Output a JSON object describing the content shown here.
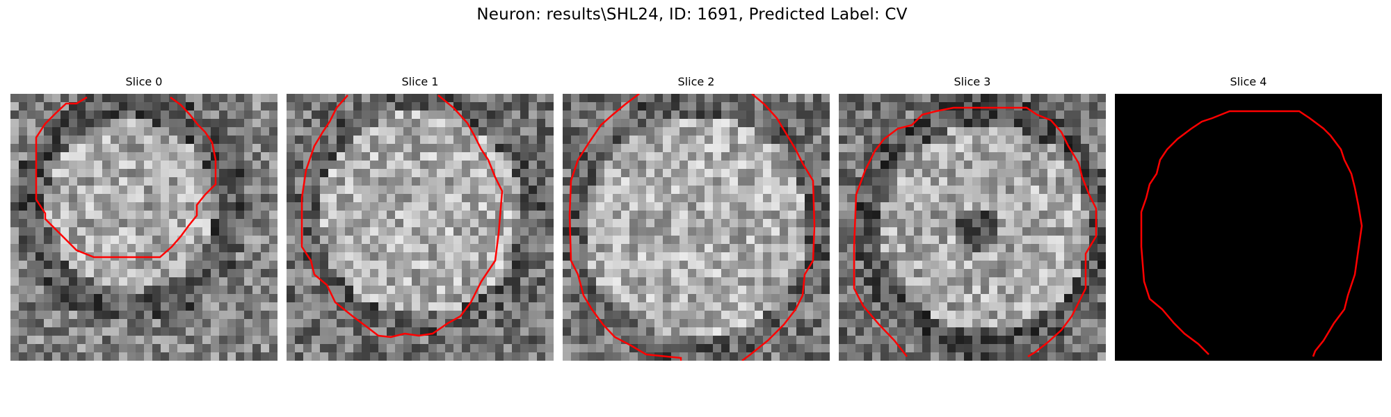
{
  "figure": {
    "title": "Neuron: results\\SHL24, ID: 1691, Predicted Label: CV"
  },
  "panels": [
    {
      "title": "Slice 0",
      "image": "grayscale-microscopy-slice",
      "contour_color": "#ff0000"
    },
    {
      "title": "Slice 1",
      "image": "grayscale-microscopy-slice",
      "contour_color": "#ff0000"
    },
    {
      "title": "Slice 2",
      "image": "grayscale-microscopy-slice",
      "contour_color": "#ff0000"
    },
    {
      "title": "Slice 3",
      "image": "grayscale-microscopy-slice",
      "contour_color": "#ff0000"
    },
    {
      "title": "Slice 4",
      "image": "black-mask-slice",
      "contour_color": "#ff0000"
    }
  ]
}
